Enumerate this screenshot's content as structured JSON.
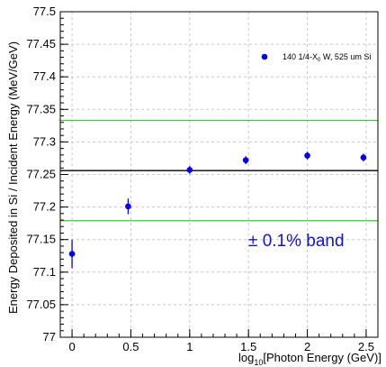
{
  "chart_data": {
    "type": "scatter",
    "xlabel_prefix": "log",
    "xlabel_sub": "10",
    "xlabel_suffix": "[Photon Energy (GeV)]",
    "ylabel": "Energy Deposited in Si / Incident Energy (MeV/GeV)",
    "xlim": [
      -0.1,
      2.6
    ],
    "ylim": [
      77,
      77.5
    ],
    "x_ticks": [
      {
        "value": 0,
        "label": "0"
      },
      {
        "value": 0.5,
        "label": "0.5"
      },
      {
        "value": 1,
        "label": "1"
      },
      {
        "value": 1.5,
        "label": "1.5"
      },
      {
        "value": 2,
        "label": "2"
      },
      {
        "value": 2.5,
        "label": "2.5"
      }
    ],
    "y_ticks": [
      {
        "value": 77,
        "label": "77"
      },
      {
        "value": 77.05,
        "label": "77.05"
      },
      {
        "value": 77.1,
        "label": "77.1"
      },
      {
        "value": 77.15,
        "label": "77.15"
      },
      {
        "value": 77.2,
        "label": "77.2"
      },
      {
        "value": 77.25,
        "label": "77.25"
      },
      {
        "value": 77.3,
        "label": "77.3"
      },
      {
        "value": 77.35,
        "label": "77.35"
      },
      {
        "value": 77.4,
        "label": "77.4"
      },
      {
        "value": 77.45,
        "label": "77.45"
      },
      {
        "value": 77.5,
        "label": "77.5"
      }
    ],
    "grid": true,
    "legend_position": "top-right",
    "series": [
      {
        "name_main": "140 1/4-X",
        "name_sub": "0",
        "name_rest": " W, 525 um Si",
        "color": "#0000ee",
        "points": [
          {
            "x": 0,
            "y": 77.128,
            "err": 0.022
          },
          {
            "x": 0.477,
            "y": 77.201,
            "err": 0.012
          },
          {
            "x": 1,
            "y": 77.257,
            "err": 0.006
          },
          {
            "x": 1.477,
            "y": 77.272,
            "err": 0.006
          },
          {
            "x": 2,
            "y": 77.279,
            "err": 0.006
          },
          {
            "x": 2.477,
            "y": 77.276,
            "err": 0.006
          }
        ]
      }
    ],
    "reference_line": {
      "y": 77.256,
      "color": "#000000"
    },
    "band_lines": [
      {
        "y": 77.333,
        "color": "#33cc33"
      },
      {
        "y": 77.179,
        "color": "#33cc33"
      }
    ],
    "band_label": "± 0.1% band",
    "band_label_color": "#1010e0"
  }
}
